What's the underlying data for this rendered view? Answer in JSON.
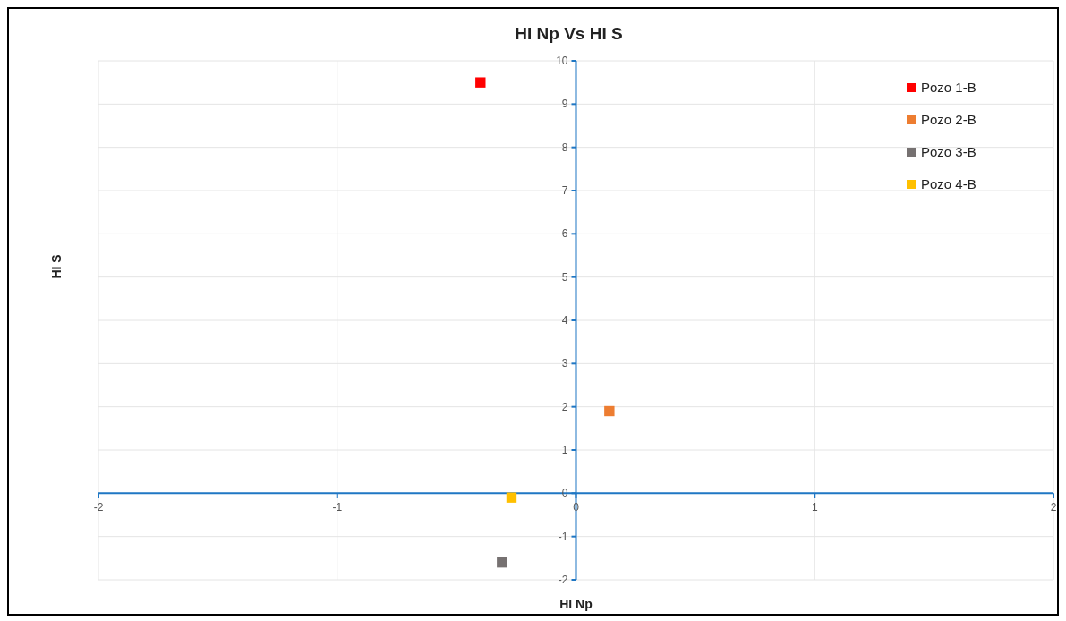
{
  "chart_data": {
    "type": "scatter",
    "title": "HI Np Vs HI S",
    "xlabel": "HI Np",
    "ylabel": "HI S",
    "series": [
      {
        "name": "Pozo 1-B",
        "color": "#ff0000",
        "x": [
          -0.4
        ],
        "values": [
          9.5
        ]
      },
      {
        "name": "Pozo 2-B",
        "color": "#ed7d31",
        "x": [
          0.14
        ],
        "values": [
          1.9
        ]
      },
      {
        "name": "Pozo 3-B",
        "color": "#767171",
        "x": [
          -0.31
        ],
        "values": [
          -1.6
        ]
      },
      {
        "name": "Pozo 4-B",
        "color": "#ffc000",
        "x": [
          -0.27
        ],
        "values": [
          -0.1
        ]
      }
    ],
    "xlim": [
      -2,
      2
    ],
    "xticks": [
      -2,
      -1,
      0,
      1,
      2
    ],
    "ylim": [
      -2,
      10
    ],
    "yticks": [
      -2,
      -1,
      0,
      1,
      2,
      3,
      4,
      5,
      6,
      7,
      8,
      9,
      10
    ],
    "grid": true,
    "legend": "top right",
    "marker": "square"
  }
}
